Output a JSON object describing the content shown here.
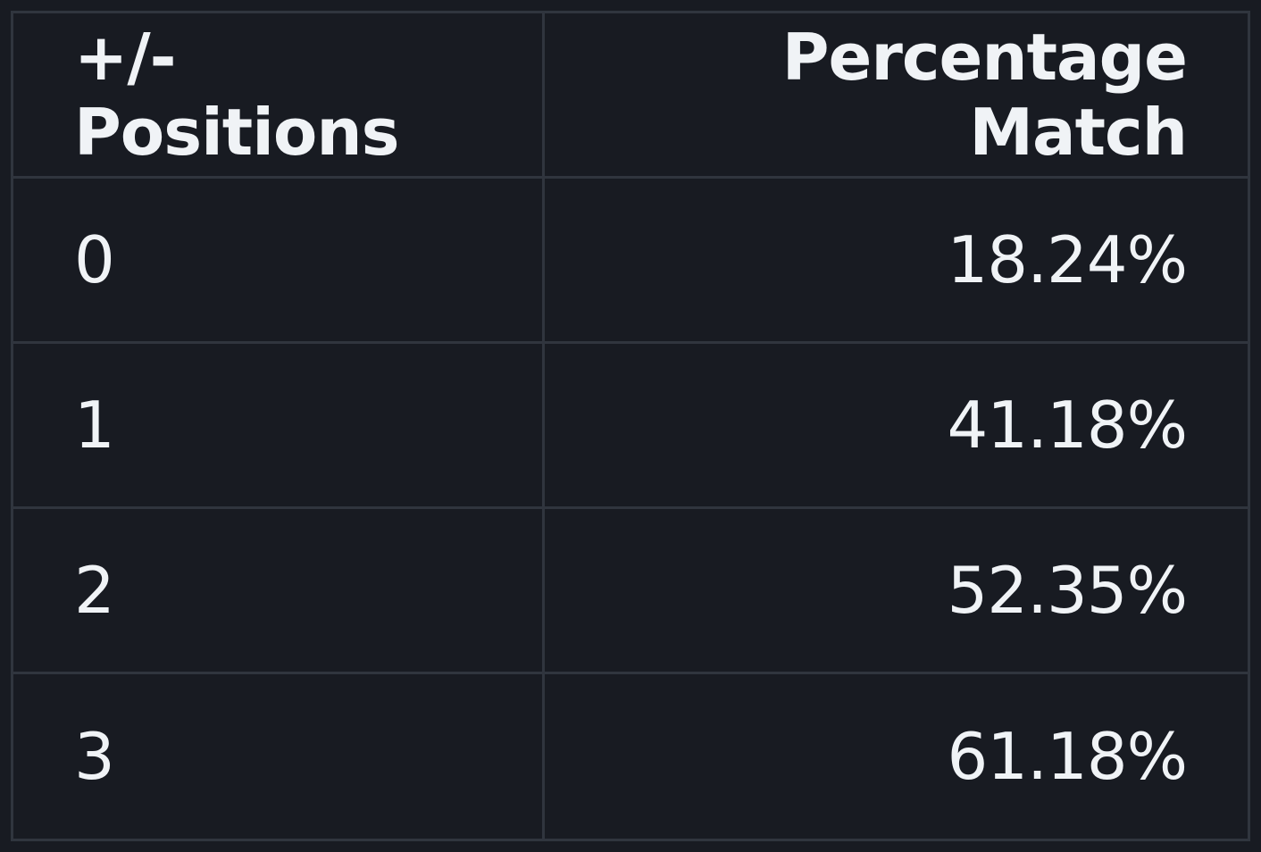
{
  "table": {
    "headers": [
      "+/- Positions",
      "Percentage Match"
    ],
    "rows": [
      [
        "0",
        "18.24%"
      ],
      [
        "1",
        "41.18%"
      ],
      [
        "2",
        "52.35%"
      ],
      [
        "3",
        "61.18%"
      ]
    ]
  },
  "colors": {
    "background": "#181b22",
    "border": "#30353e",
    "text": "#f0f3f6"
  }
}
